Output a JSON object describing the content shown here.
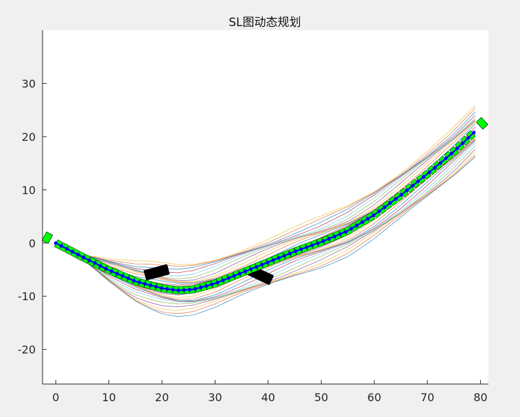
{
  "window": {
    "background": "#f0f0f0"
  },
  "chart_data": {
    "type": "line",
    "title": "SL图动态规划",
    "xlabel": "",
    "ylabel": "",
    "xlim": [
      -2.5,
      81.5
    ],
    "ylim": [
      -26.5,
      40
    ],
    "x_ticks": [
      0,
      10,
      20,
      30,
      40,
      50,
      60,
      70,
      80
    ],
    "y_ticks": [
      -20,
      -10,
      0,
      10,
      20,
      30
    ],
    "grid": false,
    "legend": "none",
    "axes_background": "#ffffff",
    "series": [
      {
        "role": "reference-centerline",
        "color": "#0000ff",
        "marker_color": "#0000ff",
        "x": [
          0,
          5,
          10,
          15,
          20,
          23,
          26,
          30,
          35,
          40,
          45,
          50,
          55,
          60,
          65,
          70,
          75,
          79
        ],
        "y": [
          0,
          -2.6,
          -5.1,
          -7.2,
          -8.5,
          -8.9,
          -8.7,
          -7.6,
          -5.6,
          -3.6,
          -1.6,
          0.2,
          2.3,
          5.3,
          9.0,
          13.0,
          17.2,
          21.0
        ]
      }
    ],
    "candidate_paths": {
      "count": 24,
      "spread": 4.5,
      "colors": [
        "#0072bd",
        "#d95319",
        "#edb120",
        "#7e2f8e",
        "#77ac30",
        "#4dbeee",
        "#a2142f"
      ]
    },
    "vehicle_footprints": {
      "color": "#00ff00",
      "edge_color": "#003300"
    },
    "obstacles": [
      {
        "name": "obstacle-1",
        "center": [
          19,
          -5.5
        ],
        "length": 4.6,
        "width": 2.0,
        "heading_deg": -15,
        "color": "#000000"
      },
      {
        "name": "obstacle-2",
        "center": [
          38.5,
          -6.0
        ],
        "length": 4.8,
        "width": 2.0,
        "heading_deg": 25,
        "color": "#000000"
      }
    ],
    "end_boxes": [
      {
        "name": "start-box",
        "center": [
          -1.6,
          1.0
        ]
      },
      {
        "name": "end-box",
        "center": [
          80.3,
          22.5
        ]
      }
    ]
  }
}
